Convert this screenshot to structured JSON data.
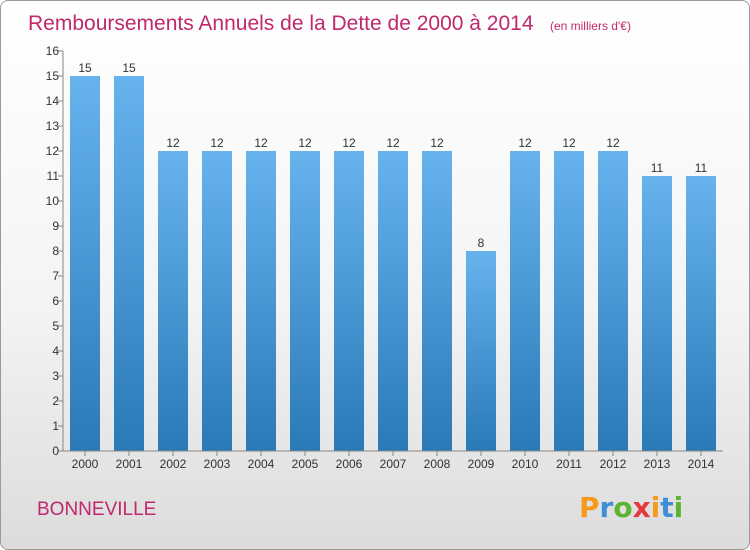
{
  "chart_data": {
    "type": "bar",
    "title": "Remboursements Annuels de la Dette de 2000 à 2014",
    "subtitle": "(en milliers d'€)",
    "categories": [
      "2000",
      "2001",
      "2002",
      "2003",
      "2004",
      "2005",
      "2006",
      "2007",
      "2008",
      "2009",
      "2010",
      "2011",
      "2012",
      "2013",
      "2014"
    ],
    "values": [
      15,
      15,
      12,
      12,
      12,
      12,
      12,
      12,
      12,
      8,
      12,
      12,
      12,
      11,
      11
    ],
    "ylim": [
      0,
      16
    ],
    "yticks": [
      0,
      1,
      2,
      3,
      4,
      5,
      6,
      7,
      8,
      9,
      10,
      11,
      12,
      13,
      14,
      15,
      16
    ],
    "xlabel": "",
    "ylabel": "",
    "grid": false,
    "bar_color_top": "#66b3ee",
    "bar_color_bottom": "#2a7ab8"
  },
  "footer": {
    "commune": "BONNEVILLE",
    "logo_letters": [
      "P",
      "r",
      "o",
      "x",
      "i",
      "t",
      "i"
    ],
    "logo_colors": [
      "#f59a1b",
      "#3d8fd6",
      "#5cb531",
      "#e6393d",
      "#f59a1b",
      "#3d8fd6",
      "#5cb531"
    ]
  }
}
